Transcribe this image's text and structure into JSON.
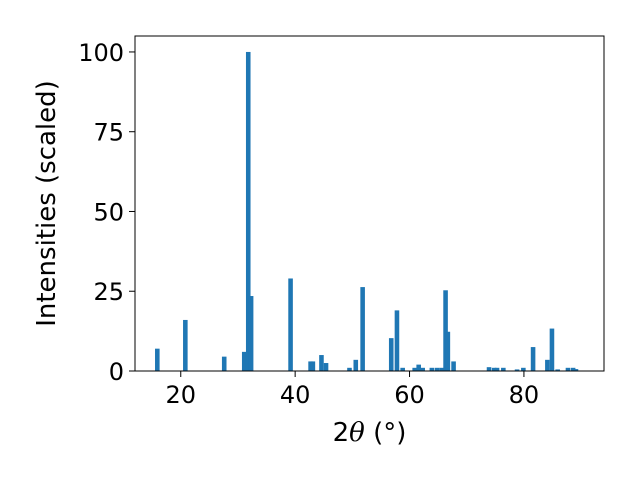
{
  "chart_data": {
    "type": "bar",
    "xlabel_parts": {
      "prefix": "2",
      "symbol": "θ",
      "suffix": " (°)"
    },
    "ylabel": "Intensities (scaled)",
    "xlim": [
      12,
      94
    ],
    "ylim": [
      0,
      105
    ],
    "xticks": [
      20,
      40,
      60,
      80
    ],
    "yticks": [
      0,
      25,
      50,
      75,
      100
    ],
    "grid": false,
    "bar_color": "#1f77b4",
    "bar_width": 0.8,
    "x": [
      15.9,
      20.8,
      27.6,
      31.1,
      31.8,
      32.3,
      39.2,
      42.7,
      43.1,
      44.6,
      45.4,
      49.5,
      50.6,
      51.8,
      56.8,
      57.8,
      58.8,
      60.9,
      61.6,
      62.3,
      63.9,
      64.8,
      65.6,
      66.3,
      66.7,
      67.7,
      73.9,
      74.8,
      75.3,
      76.4,
      78.8,
      79.9,
      81.6,
      84.1,
      84.9,
      85.9,
      87.7,
      88.6,
      89.1
    ],
    "values": [
      7,
      16,
      4.5,
      6,
      100,
      23.5,
      29,
      3,
      3,
      5,
      2.5,
      1,
      3.5,
      26.3,
      10.3,
      19,
      1,
      1,
      2,
      1,
      1,
      1,
      1,
      25.3,
      12.3,
      3,
      1.2,
      1,
      1,
      1,
      0.5,
      1,
      7.5,
      3.5,
      13.3,
      0.5,
      1,
      1,
      0.6
    ]
  }
}
